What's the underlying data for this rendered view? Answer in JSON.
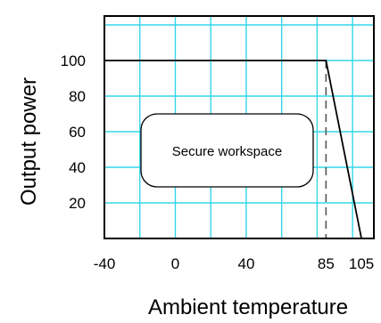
{
  "chart_data": {
    "type": "line",
    "title": "",
    "xlabel": "Ambient temperature",
    "ylabel": "Output power",
    "xlim": [
      -40,
      112
    ],
    "ylim": [
      0,
      125
    ],
    "x_ticks": [
      {
        "value": -40,
        "label": "-40"
      },
      {
        "value": 0,
        "label": "0"
      },
      {
        "value": 40,
        "label": "40"
      },
      {
        "value": 85,
        "label": "85"
      },
      {
        "value": 105,
        "label": "105"
      }
    ],
    "y_ticks": [
      {
        "value": 20,
        "label": "20"
      },
      {
        "value": 40,
        "label": "40"
      },
      {
        "value": 60,
        "label": "60"
      },
      {
        "value": 80,
        "label": "80"
      },
      {
        "value": 100,
        "label": "100"
      }
    ],
    "grid_x": [
      -20,
      0,
      20,
      40,
      60,
      80,
      100
    ],
    "grid_y": [
      20,
      40,
      60,
      80,
      100,
      120
    ],
    "grid": true,
    "series": [
      {
        "x": [
          -40,
          85,
          105
        ],
        "y": [
          100,
          100,
          0
        ],
        "color": "#000000"
      }
    ],
    "reference_lines": [
      {
        "x": 85,
        "style": "dashed",
        "color": "#555555"
      }
    ],
    "grid_color": "#33d6e8",
    "annotation": {
      "text": "Secure workspace"
    }
  }
}
